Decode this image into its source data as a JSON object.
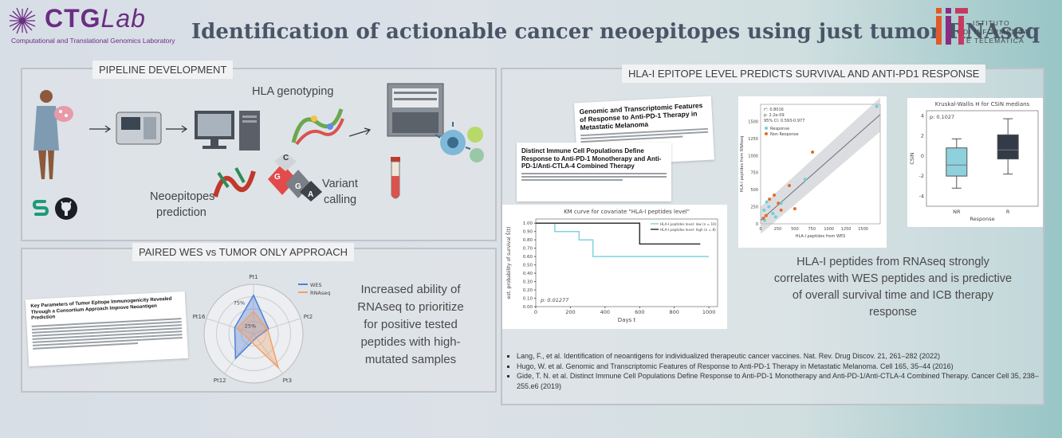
{
  "header": {
    "ctg_logo_main": "CTG",
    "ctg_logo_italic": "Lab",
    "ctg_logo_sub": "Computational and Translational Genomics Laboratory",
    "title": "Identification of actionable cancer neoepitopes using just tumor RNAseq",
    "iit_logo_lines": [
      "ISTITUTO",
      "DI INFORMATICA",
      "E TELEMATICA"
    ]
  },
  "pipeline": {
    "title": "PIPELINE DEVELOPMENT",
    "hla_label": "HLA genotyping",
    "variant_label_1": "Variant",
    "variant_label_2": "calling",
    "neo_label_1": "Neoepitopes",
    "neo_label_2": "prediction",
    "dna_letters": [
      "G",
      "C",
      "G",
      "A"
    ]
  },
  "paired": {
    "title": "PAIRED WES vs TUMOR ONLY APPROACH",
    "paper_title": "Key Parameters of Tumor Epitope Immunogenicity Revealed Through a Consortium Approach Improve Neoantigen Prediction",
    "description": [
      "Increased ability of",
      "RNAseq to prioritize",
      "for positive tested",
      "peptides with high-",
      "mutated samples"
    ]
  },
  "radar": {
    "axes": [
      "Pt1",
      "Pt2",
      "Pt3",
      "Pt12",
      "Pt16"
    ],
    "rings": [
      "25%",
      "75%"
    ],
    "series": [
      {
        "name": "WES",
        "color": "#4f7fd6",
        "values": [
          0.78,
          0.32,
          0.1,
          0.62,
          0.4
        ]
      },
      {
        "name": "RNAseq",
        "color": "#f0a06a",
        "values": [
          0.45,
          0.3,
          0.85,
          0.15,
          0.35
        ]
      }
    ]
  },
  "right": {
    "title": "HLA-I EPITOPE LEVEL PREDICTS SURVIVAL AND ANTI-PD1 RESPONSE",
    "paper1_title": "Genomic and Transcriptomic Features of Response to Anti-PD-1 Therapy in Metastatic Melanoma",
    "paper2_title": "Distinct Immune Cell Populations Define Response to Anti-PD-1 Monotherapy and Anti-PD-1/Anti-CTLA-4 Combined Therapy",
    "summary": [
      "HLA-I peptides from RNAseq strongly",
      "correlates with WES peptides and is predictive",
      "of overall survival time and ICB therapy",
      "response"
    ]
  },
  "references": [
    "Lang, F., et al. Identification of neoantigens for individualized therapeutic cancer vaccines. Nat. Rev. Drug Discov. 21, 261–282 (2022)",
    "Hugo, W. et al. Genomic and Transcriptomic Features of Response to Anti-PD-1 Therapy in Metastatic Melanoma. Cell 165, 35–44 (2016)",
    "Gide, T. N. et al. Distinct Immune Cell Populations Define Response to Anti-PD-1 Monotherapy and Anti-PD-1/Anti-CTLA-4 Combined Therapy. Cancer Cell 35, 238–255.e6 (2019)"
  ],
  "chart_data": [
    {
      "type": "line",
      "title": "KM curve for covariate \"HLA-I peptides level\"",
      "xlabel": "Days t",
      "ylabel": "est. probability of survival Ŝ(t)",
      "xlim": [
        0,
        1050
      ],
      "ylim": [
        0,
        1.05
      ],
      "xticks": [
        0,
        200,
        400,
        600,
        800,
        1000
      ],
      "yticks": [
        0.0,
        0.1,
        0.2,
        0.3,
        0.4,
        0.5,
        0.6,
        0.7,
        0.8,
        0.9,
        1.0
      ],
      "annotation": "p: 0.01277",
      "series": [
        {
          "name": "HLA-I peptides level: low (n = 10)",
          "color": "#7fd3df",
          "x": [
            0,
            110,
            110,
            250,
            250,
            330,
            330,
            1000
          ],
          "y": [
            1.0,
            1.0,
            0.9,
            0.9,
            0.8,
            0.8,
            0.6,
            0.6
          ]
        },
        {
          "name": "HLA-I peptides level: high (n = 8)",
          "color": "#333333",
          "x": [
            0,
            600,
            600,
            950
          ],
          "y": [
            1.0,
            1.0,
            0.75,
            0.75
          ]
        }
      ]
    },
    {
      "type": "scatter",
      "xlabel": "HLA-I peptides from WES",
      "ylabel": "HLA-I peptides from RNAseq",
      "xlim": [
        0,
        1750
      ],
      "ylim": [
        0,
        1750
      ],
      "xticks": [
        0,
        250,
        500,
        750,
        1000,
        1250,
        1500
      ],
      "yticks": [
        0,
        250,
        500,
        750,
        1000,
        1250,
        1500
      ],
      "stats": [
        "r²: 0.8016",
        "p: 2.2e-09",
        "95% CI: 0.593-0.977"
      ],
      "series": [
        {
          "name": "Response",
          "color": "#6fd0dc",
          "points": [
            [
              1700,
              1720
            ],
            [
              50,
              200
            ],
            [
              120,
              250
            ],
            [
              180,
              150
            ],
            [
              300,
              300
            ],
            [
              60,
              50
            ],
            [
              220,
              100
            ],
            [
              650,
              650
            ],
            [
              90,
              320
            ]
          ]
        },
        {
          "name": "Non Response",
          "color": "#e46c2a",
          "points": [
            [
              760,
              1050
            ],
            [
              200,
              420
            ],
            [
              130,
              360
            ],
            [
              260,
              300
            ],
            [
              420,
              560
            ],
            [
              80,
              120
            ],
            [
              300,
              200
            ],
            [
              40,
              80
            ],
            [
              500,
              220
            ]
          ]
        }
      ]
    },
    {
      "type": "box",
      "title": "Kruskal-Wallis H for CSiN medians",
      "annotation": "p: 0.1027",
      "xlabel": "Response",
      "ylabel": "CSiN",
      "ylim": [
        -5,
        4.5
      ],
      "yticks": [
        -4,
        -2,
        0,
        2,
        4
      ],
      "categories": [
        "NR",
        "R"
      ],
      "boxes": [
        {
          "color": "#8fd0dd",
          "whisker_low": -3.2,
          "q1": -2.0,
          "median": -0.9,
          "q3": 0.8,
          "whisker_high": 1.7
        },
        {
          "color": "#323b47",
          "whisker_low": -1.8,
          "q1": -0.3,
          "median": 0.6,
          "q3": 2.1,
          "whisker_high": 3.7
        }
      ]
    }
  ]
}
